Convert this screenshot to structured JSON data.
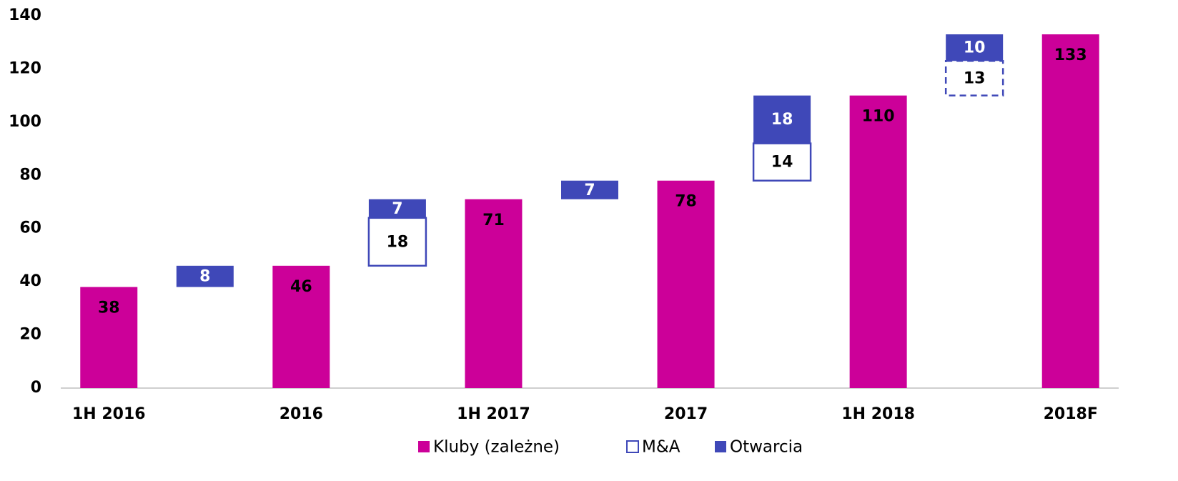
{
  "chart_data": {
    "type": "waterfall",
    "categories": [
      "1H 2016",
      null,
      "2016",
      null,
      "1H 2017",
      null,
      "2017",
      null,
      "1H 2018",
      null,
      "2018F"
    ],
    "series": [
      {
        "name": "Kluby (zależne)",
        "color": "#cc0099",
        "values": [
          38,
          null,
          46,
          null,
          71,
          null,
          78,
          null,
          110,
          null,
          133
        ]
      },
      {
        "name": "M&A",
        "color": "#3f48b8",
        "values": [
          null,
          null,
          null,
          18,
          null,
          null,
          null,
          14,
          null,
          13,
          null
        ],
        "dashed": [
          9
        ]
      },
      {
        "name": "Otwarcia",
        "color": "#3f48b8",
        "values": [
          null,
          8,
          null,
          7,
          null,
          7,
          null,
          18,
          null,
          10,
          null
        ]
      }
    ],
    "ylim": [
      0,
      140
    ],
    "yticks": [
      0,
      20,
      40,
      60,
      80,
      100,
      120,
      140
    ],
    "grid": false,
    "legend": "bottom"
  }
}
